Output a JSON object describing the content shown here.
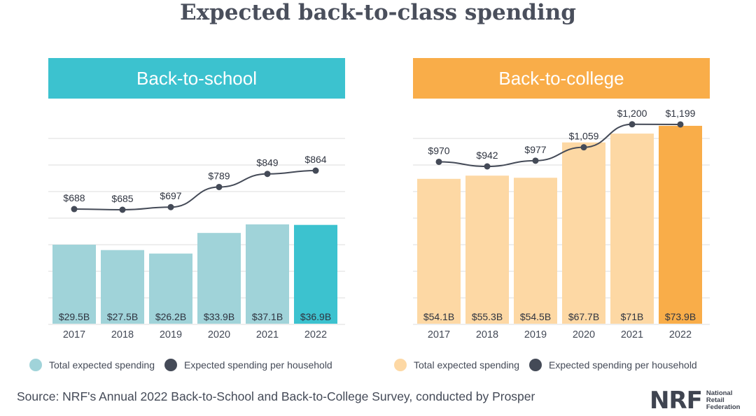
{
  "title": "Expected back-to-class spending",
  "source": "Source: NRF's Annual 2022 Back-to-School and Back-to-College Survey, conducted by Prosper",
  "logo": {
    "mark": "NRF",
    "line1": "National",
    "line2": "Retail",
    "line3": "Federation"
  },
  "colors": {
    "school_header": "#3cc2cf",
    "school_bar": "#a0d3d9",
    "school_bar_highlight": "#3cc2cf",
    "college_header": "#f9ad49",
    "college_bar": "#fdd8a4",
    "college_bar_highlight": "#f9ad49",
    "line": "#444a57",
    "grid": "#dddddd"
  },
  "chart_data": [
    {
      "type": "bar",
      "title": "Back-to-school",
      "categories": [
        "2017",
        "2018",
        "2019",
        "2020",
        "2021",
        "2022"
      ],
      "series": [
        {
          "name": "Total expected spending",
          "values": [
            29.5,
            27.5,
            26.2,
            33.9,
            37.1,
            36.9
          ],
          "labels": [
            "$29.5B",
            "$27.5B",
            "$26.2B",
            "$33.9B",
            "$37.1B",
            "$36.9B"
          ],
          "unit": "billion USD"
        },
        {
          "name": "Expected spending per household",
          "type": "line",
          "values": [
            688,
            685,
            697,
            789,
            849,
            864
          ],
          "labels": [
            "$688",
            "$685",
            "$697",
            "$789",
            "$849",
            "$864"
          ],
          "unit": "USD"
        }
      ],
      "highlight_index": 5,
      "grid": true,
      "legend": "bottom"
    },
    {
      "type": "bar",
      "title": "Back-to-college",
      "categories": [
        "2017",
        "2018",
        "2019",
        "2020",
        "2021",
        "2022"
      ],
      "series": [
        {
          "name": "Total expected spending",
          "values": [
            54.1,
            55.3,
            54.5,
            67.7,
            71,
            73.9
          ],
          "labels": [
            "$54.1B",
            "$55.3B",
            "$54.5B",
            "$67.7B",
            "$71B",
            "$73.9B"
          ],
          "unit": "billion USD"
        },
        {
          "name": "Expected spending per household",
          "type": "line",
          "values": [
            970,
            942,
            977,
            1059,
            1200,
            1199
          ],
          "labels": [
            "$970",
            "$942",
            "$977",
            "$1,059",
            "$1,200",
            "$1,199"
          ],
          "unit": "USD"
        }
      ],
      "highlight_index": 5,
      "grid": true,
      "legend": "bottom"
    }
  ]
}
